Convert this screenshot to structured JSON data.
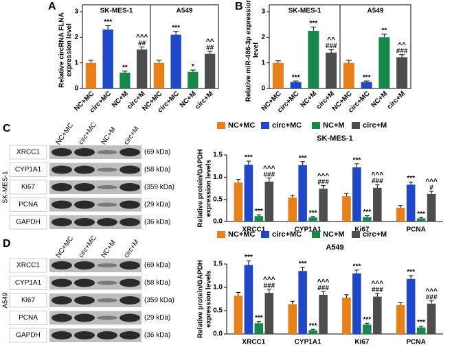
{
  "panels": [
    "A",
    "B",
    "C",
    "D"
  ],
  "chart_data": [
    {
      "type": "bar",
      "ylabel": [
        "Relative circRNA FLNA",
        "expression level"
      ],
      "ylim": [
        0,
        3
      ],
      "yticks": [
        0,
        1,
        2,
        3
      ],
      "colors": [
        "#e8801a",
        "#1f47c8",
        "#15884a",
        "#4d4d4d"
      ],
      "groups": [
        {
          "name": "SK-MES-1",
          "categories": [
            "NC+MC",
            "circ+MC",
            "NC+M",
            "circ+M"
          ],
          "values": [
            1.0,
            2.3,
            0.62,
            1.52
          ],
          "errors": [
            0.1,
            0.15,
            0.06,
            0.1
          ],
          "annotations": [
            [],
            [
              "***"
            ],
            [
              "**"
            ],
            [
              "^^^",
              "##"
            ]
          ]
        },
        {
          "name": "A549",
          "categories": [
            "NC+MC",
            "circ+MC",
            "NC+M",
            "circ+M"
          ],
          "values": [
            1.0,
            2.1,
            0.65,
            1.35
          ],
          "errors": [
            0.1,
            0.13,
            0.07,
            0.1
          ],
          "annotations": [
            [],
            [
              "***"
            ],
            [
              "*"
            ],
            [
              "^^",
              "##"
            ]
          ]
        }
      ]
    },
    {
      "type": "bar",
      "ylabel": [
        "Relative miR-486-3p expression",
        "level"
      ],
      "ylim": [
        0,
        3
      ],
      "yticks": [
        0,
        1,
        2,
        3
      ],
      "colors": [
        "#e8801a",
        "#1f47c8",
        "#15884a",
        "#4d4d4d"
      ],
      "groups": [
        {
          "name": "SK-MES-1",
          "categories": [
            "NC+MC",
            "circ+MC",
            "NC+M",
            "circ+M"
          ],
          "values": [
            1.0,
            0.25,
            2.25,
            1.4
          ],
          "errors": [
            0.08,
            0.04,
            0.15,
            0.12
          ],
          "annotations": [
            [],
            [
              "***"
            ],
            [
              "***"
            ],
            [
              "^^",
              "###"
            ]
          ]
        },
        {
          "name": "A549",
          "categories": [
            "NC+MC",
            "circ+MC",
            "NC+M",
            "circ+M"
          ],
          "values": [
            1.0,
            0.25,
            2.0,
            1.22
          ],
          "errors": [
            0.1,
            0.04,
            0.12,
            0.1
          ],
          "annotations": [
            [],
            [
              "***"
            ],
            [
              "**"
            ],
            [
              "^^",
              "###"
            ]
          ]
        }
      ]
    },
    {
      "type": "bar",
      "title": "SK-MES-1",
      "ylabel": [
        "Relative protein/GAPDH",
        "expression levels"
      ],
      "ylim": [
        0,
        1.5
      ],
      "yticks": [
        {
          "value": 0,
          "label": "0.0"
        },
        {
          "value": 0.5,
          "label": "0.5"
        },
        {
          "value": 1,
          "label": "1.0"
        },
        {
          "value": 1.5,
          "label": "1.5"
        }
      ],
      "categories": [
        "XRCC1",
        "CYP1A1",
        "Ki67",
        "PCNA"
      ],
      "series": [
        {
          "name": "NC+MC",
          "color": "#e8801a",
          "values": [
            0.88,
            0.54,
            0.57,
            0.31
          ],
          "errors": [
            0.07,
            0.05,
            0.06,
            0.05
          ],
          "annotations": [
            [],
            [],
            [],
            []
          ]
        },
        {
          "name": "circ+MC",
          "color": "#1f47c8",
          "values": [
            1.28,
            1.27,
            1.22,
            0.83
          ],
          "errors": [
            0.08,
            0.08,
            0.08,
            0.06
          ],
          "annotations": [
            [
              "***"
            ],
            [
              "***"
            ],
            [
              "***"
            ],
            [
              "***"
            ]
          ]
        },
        {
          "name": "NC+M",
          "color": "#15884a",
          "values": [
            0.12,
            0.09,
            0.1,
            0.07
          ],
          "errors": [
            0.03,
            0.02,
            0.03,
            0.02
          ],
          "annotations": [
            [
              "***"
            ],
            [
              "***"
            ],
            [
              "***"
            ],
            [
              "***"
            ]
          ]
        },
        {
          "name": "circ+M",
          "color": "#4d4d4d",
          "values": [
            0.9,
            0.74,
            0.76,
            0.62
          ],
          "errors": [
            0.08,
            0.07,
            0.07,
            0.06
          ],
          "annotations": [
            [
              "^^^",
              "###"
            ],
            [
              "^^^",
              "###"
            ],
            [
              "^^^",
              "###"
            ],
            [
              "^^^",
              "#"
            ]
          ]
        }
      ]
    },
    {
      "type": "bar",
      "title": "A549",
      "ylabel": [
        "Relative protein/GAPDH",
        "expression levels"
      ],
      "ylim": [
        0,
        1.5
      ],
      "yticks": [
        {
          "value": 0,
          "label": "0.0"
        },
        {
          "value": 0.5,
          "label": "0.5"
        },
        {
          "value": 1,
          "label": "1.0"
        },
        {
          "value": 1.5,
          "label": "1.5"
        }
      ],
      "categories": [
        "XRCC1",
        "CYP1A1",
        "Ki67",
        "PCNA"
      ],
      "series": [
        {
          "name": "NC+MC",
          "color": "#e8801a",
          "values": [
            0.82,
            0.64,
            0.78,
            0.62
          ],
          "errors": [
            0.07,
            0.06,
            0.06,
            0.05
          ],
          "annotations": [
            [],
            [],
            [],
            []
          ]
        },
        {
          "name": "circ+MC",
          "color": "#1f47c8",
          "values": [
            1.48,
            1.35,
            1.3,
            1.18
          ],
          "errors": [
            0.09,
            0.08,
            0.07,
            0.07
          ],
          "annotations": [
            [
              "***"
            ],
            [
              "***"
            ],
            [
              "***"
            ],
            [
              "***"
            ]
          ]
        },
        {
          "name": "NC+M",
          "color": "#15884a",
          "values": [
            0.23,
            0.08,
            0.2,
            0.14
          ],
          "errors": [
            0.04,
            0.02,
            0.03,
            0.03
          ],
          "annotations": [
            [
              "***"
            ],
            [
              "***"
            ],
            [
              "***"
            ],
            [
              "***"
            ]
          ]
        },
        {
          "name": "circ+M",
          "color": "#4d4d4d",
          "values": [
            0.88,
            0.84,
            0.8,
            0.65
          ],
          "errors": [
            0.08,
            0.07,
            0.07,
            0.06
          ],
          "annotations": [
            [
              "^^^",
              "###"
            ],
            [
              "^^^",
              "###"
            ],
            [
              "^^^",
              "###"
            ],
            [
              "^^^",
              "###"
            ]
          ]
        }
      ]
    }
  ],
  "blots": [
    {
      "cell_line": "SK-MES-1",
      "lanes": [
        "NC+MC",
        "circ+MC",
        "NC+M",
        "circ+M"
      ],
      "proteins": [
        "XRCC1",
        "CYP1A1",
        "Ki67",
        "PCNA",
        "GAPDH"
      ],
      "sizes": [
        "(69 kDa)",
        "(58 kDa)",
        "(359 kDa)",
        "(29 kDa)",
        "(36 kDa)"
      ]
    },
    {
      "cell_line": "A549",
      "lanes": [
        "NC+MC",
        "circ+MC",
        "NC+M",
        "circ+M"
      ],
      "proteins": [
        "XRCC1",
        "CYP1A1",
        "Ki67",
        "PCNA",
        "GAPDH"
      ],
      "sizes": [
        "(69 kDa)",
        "(58 kDa)",
        "(359 kDa)",
        "(29 kDa)",
        "(36 kDa)"
      ]
    }
  ]
}
